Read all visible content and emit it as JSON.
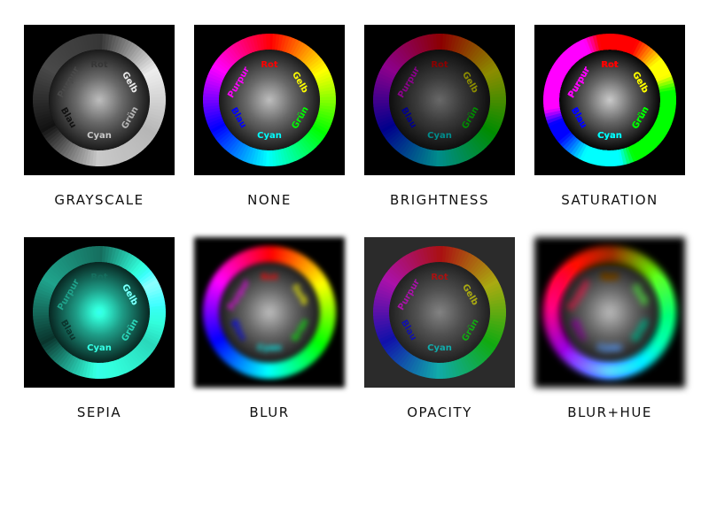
{
  "tiles": [
    {
      "caption": "GRAYSCALE",
      "effect": "grayscale"
    },
    {
      "caption": "NONE",
      "effect": "none"
    },
    {
      "caption": "BRIGHTNESS",
      "effect": "brightness"
    },
    {
      "caption": "SATURATION",
      "effect": "saturation"
    },
    {
      "caption": "SEPIA",
      "effect": "sepia"
    },
    {
      "caption": "BLUR",
      "effect": "blur"
    },
    {
      "caption": "OPACITY",
      "effect": "opacity"
    },
    {
      "caption": "BLUR+HUE",
      "effect": "blur+hue"
    }
  ],
  "wheel_labels": {
    "rot": "Rot",
    "gelb": "Gelb",
    "gruen": "Grün",
    "cyan": "Cyan",
    "blau": "Blau",
    "purpur": "Purpur"
  },
  "colors": {
    "rot": "#ff0000",
    "gelb": "#ffff00",
    "gruen": "#00ff00",
    "cyan": "#00ffff",
    "blau": "#0000ff",
    "purpur": "#ff00ff"
  }
}
